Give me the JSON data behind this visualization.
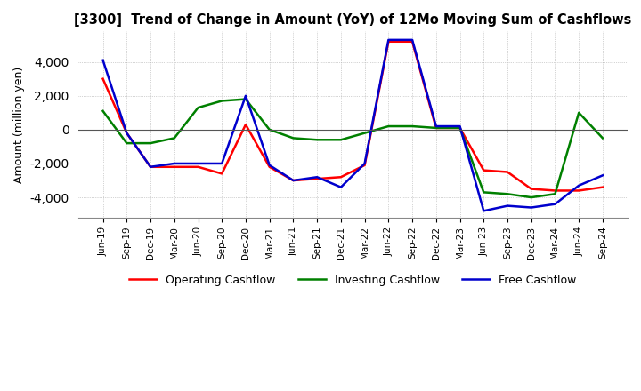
{
  "title": "[3300]  Trend of Change in Amount (YoY) of 12Mo Moving Sum of Cashflows",
  "ylabel": "Amount (million yen)",
  "background_color": "#ffffff",
  "grid_color": "#aaaaaa",
  "ylim": [
    -5200,
    5800
  ],
  "yticks": [
    -4000,
    -2000,
    0,
    2000,
    4000
  ],
  "x_labels": [
    "Jun-19",
    "Sep-19",
    "Dec-19",
    "Mar-20",
    "Jun-20",
    "Sep-20",
    "Dec-20",
    "Mar-21",
    "Jun-21",
    "Sep-21",
    "Dec-21",
    "Mar-22",
    "Jun-22",
    "Sep-22",
    "Dec-22",
    "Mar-23",
    "Jun-23",
    "Sep-23",
    "Dec-23",
    "Mar-24",
    "Jun-24",
    "Sep-24"
  ],
  "operating": [
    3000,
    -200,
    -2200,
    -2200,
    -2200,
    -2600,
    300,
    -2200,
    -3000,
    -2900,
    -2800,
    -2100,
    5200,
    5200,
    100,
    100,
    -2400,
    -2500,
    -3500,
    -3600,
    -3600,
    -3400
  ],
  "investing": [
    1100,
    -800,
    -800,
    -500,
    1300,
    1700,
    1800,
    0,
    -500,
    -600,
    -600,
    -200,
    200,
    200,
    100,
    100,
    -3700,
    -3800,
    -4000,
    -3800,
    1000,
    -500
  ],
  "free": [
    4100,
    -200,
    -2200,
    -2000,
    -2000,
    -2000,
    2000,
    -2100,
    -3000,
    -2800,
    -3400,
    -2000,
    5300,
    5300,
    200,
    200,
    -4800,
    -4500,
    -4600,
    -4400,
    -3300,
    -2700
  ],
  "op_color": "#ff0000",
  "inv_color": "#008000",
  "free_color": "#0000cd",
  "line_width": 1.8
}
